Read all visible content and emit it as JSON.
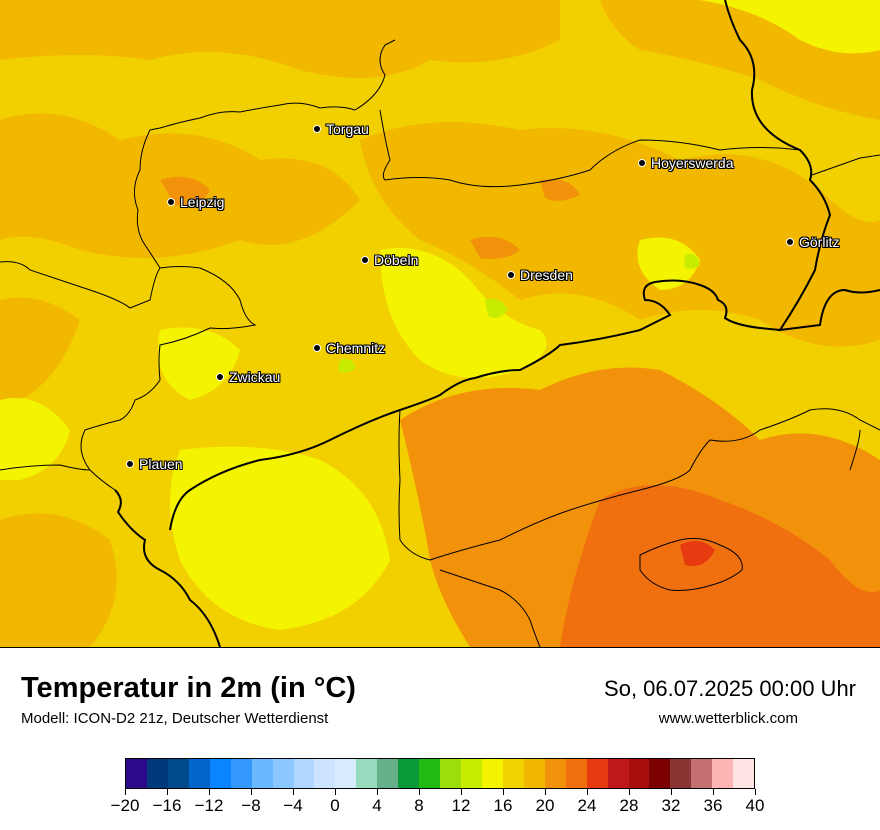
{
  "map": {
    "cities": [
      {
        "name": "Torgau"
      },
      {
        "name": "Hoyerswerda"
      },
      {
        "name": "Leipzig"
      },
      {
        "name": "Görlitz"
      },
      {
        "name": "Döbeln"
      },
      {
        "name": "Dresden"
      },
      {
        "name": "Chemnitz"
      },
      {
        "name": "Zwickau"
      },
      {
        "name": "Plauen"
      }
    ]
  },
  "footer": {
    "title": "Temperatur in 2m (in °C)",
    "model": "Modell: ICON-D2 21z, Deutscher Wetterdienst",
    "datetime": "So, 06.07.2025 00:00 Uhr",
    "website": "www.wetterblick.com"
  },
  "legend": {
    "tick_labels": [
      "−20",
      "−16",
      "−12",
      "−8",
      "−4",
      "0",
      "4",
      "8",
      "12",
      "16",
      "20",
      "24",
      "28",
      "32",
      "36",
      "40"
    ],
    "range": [
      -20,
      40
    ],
    "colors": [
      "#2c0a8a",
      "#003a7d",
      "#004a8c",
      "#0066cc",
      "#0a84ff",
      "#3399ff",
      "#6ab8ff",
      "#8cc8ff",
      "#b0d8ff",
      "#cce4ff",
      "#d8ecff",
      "#98dcc0",
      "#66b08c",
      "#0a9a3a",
      "#22bb12",
      "#9cde0a",
      "#c8ec00",
      "#f4f400",
      "#f0d200",
      "#f2b800",
      "#f2920a",
      "#f07010",
      "#e83a10",
      "#c01818",
      "#a81010",
      "#7c0000",
      "#8a3434",
      "#c47070",
      "#ffb4b4",
      "#ffe4e4"
    ]
  },
  "colors": {
    "base_field": "#f2d200",
    "warm_field": "#f2b800",
    "hot_field": "#f2920a",
    "cool_field": "#f4f400"
  }
}
